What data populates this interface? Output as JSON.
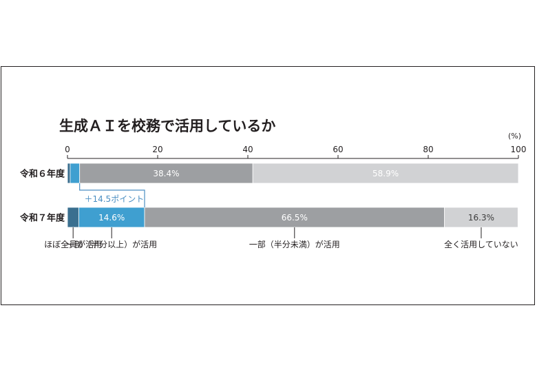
{
  "chart_data": {
    "type": "bar",
    "orientation": "horizontal",
    "stacked": true,
    "title": "生成ＡＩを校務で活用しているか",
    "unit": "(%)",
    "xlim": [
      0,
      100
    ],
    "x_ticks": [
      "0",
      "20",
      "40",
      "60",
      "80",
      "100"
    ],
    "categories": [
      "令和６年度",
      "令和７年度"
    ],
    "series": [
      {
        "name": "ほぼ全員が活用",
        "values": [
          0.6,
          2.5
        ],
        "color": "#3a6f8f"
      },
      {
        "name": "一部（半分以上）が活用",
        "values": [
          2.1,
          14.6
        ],
        "color": "#3f9fd0"
      },
      {
        "name": "一部（半分未満）が活用",
        "values": [
          38.4,
          66.5
        ],
        "color": "#9d9fa2"
      },
      {
        "name": "全く活用していない",
        "values": [
          58.9,
          16.3
        ],
        "color": "#d1d2d4"
      }
    ],
    "data_labels": [
      [
        "",
        "",
        "38.4%",
        "58.9%"
      ],
      [
        "",
        "14.6%",
        "66.5%",
        "16.3%"
      ]
    ],
    "annotation": "＋14.5ポイント",
    "annotation_color": "#4a8ec2",
    "grid": false
  }
}
